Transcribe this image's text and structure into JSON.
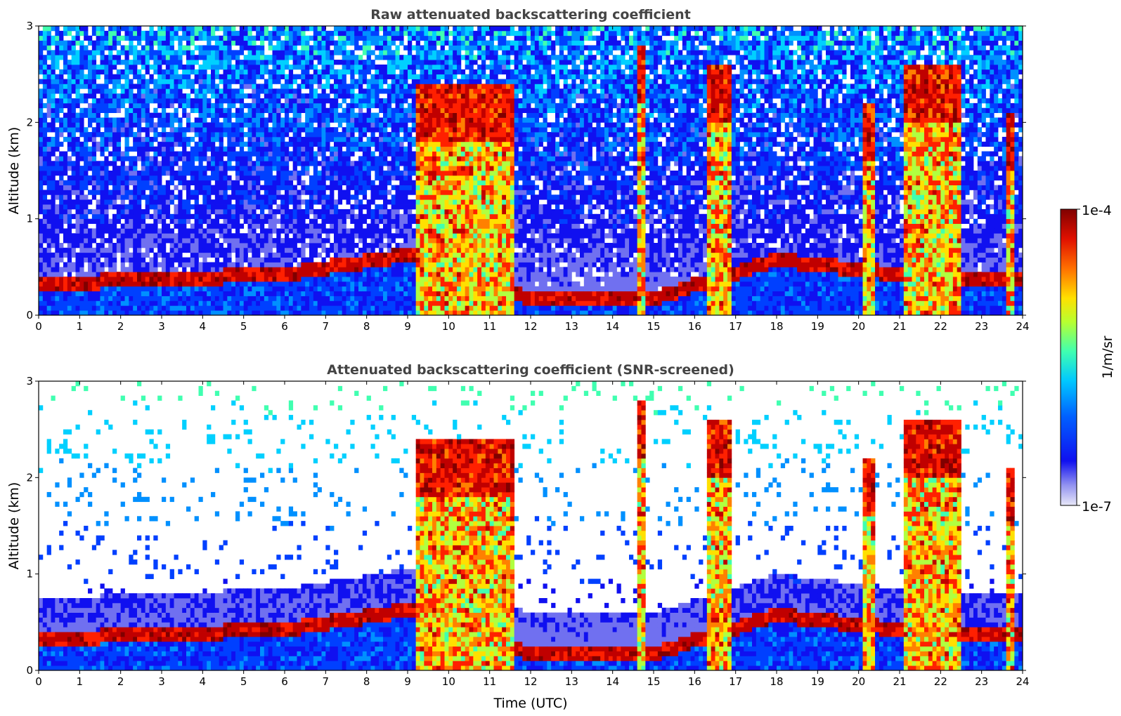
{
  "chart_data": [
    {
      "type": "heatmap",
      "title": "Raw attenuated backscattering coefficient",
      "xlabel": "",
      "ylabel": "Altitude (km)",
      "xlim": [
        0,
        24
      ],
      "ylim": [
        0,
        3
      ],
      "xticks": [
        "0",
        "1",
        "2",
        "3",
        "4",
        "5",
        "6",
        "7",
        "8",
        "9",
        "10",
        "11",
        "12",
        "13",
        "14",
        "15",
        "16",
        "17",
        "18",
        "19",
        "20",
        "21",
        "22",
        "23",
        "24"
      ],
      "yticks": [
        "0",
        "1",
        "2",
        "3"
      ],
      "screened": false
    },
    {
      "type": "heatmap",
      "title": "Attenuated backscattering coefficient (SNR-screened)",
      "xlabel": "Time (UTC)",
      "ylabel": "Altitude (km)",
      "xlim": [
        0,
        24
      ],
      "ylim": [
        0,
        3
      ],
      "xticks": [
        "0",
        "1",
        "2",
        "3",
        "4",
        "5",
        "6",
        "7",
        "8",
        "9",
        "10",
        "11",
        "12",
        "13",
        "14",
        "15",
        "16",
        "17",
        "18",
        "19",
        "20",
        "21",
        "22",
        "23",
        "24"
      ],
      "yticks": [
        "0",
        "1",
        "2",
        "3"
      ],
      "screened": true
    }
  ],
  "colorbar": {
    "label": "1/m/sr",
    "max_label": "1e-4",
    "min_label": "1e-7",
    "colors": [
      "#e8e8f8",
      "#b8b8f0",
      "#7070f0",
      "#1010f0",
      "#0040ff",
      "#0090ff",
      "#00d0ff",
      "#40ffb0",
      "#b0ff40",
      "#ffe000",
      "#ff8000",
      "#ff2000",
      "#c00000",
      "#800000"
    ]
  },
  "features": {
    "boundary_layer_top_km": [
      [
        0,
        0.25
      ],
      [
        3,
        0.3
      ],
      [
        6,
        0.35
      ],
      [
        9,
        0.55
      ],
      [
        12,
        0.1
      ],
      [
        15,
        0.1
      ],
      [
        18,
        0.5
      ],
      [
        21,
        0.35
      ],
      [
        24,
        0.3
      ]
    ],
    "cloud_columns": [
      {
        "x0": 9.2,
        "x1": 11.6,
        "top_km": 2.4
      },
      {
        "x0": 14.6,
        "x1": 14.8,
        "top_km": 2.8
      },
      {
        "x0": 16.3,
        "x1": 16.9,
        "top_km": 2.6
      },
      {
        "x0": 20.1,
        "x1": 20.4,
        "top_km": 2.2
      },
      {
        "x0": 21.1,
        "x1": 22.5,
        "top_km": 2.6
      },
      {
        "x0": 23.65,
        "x1": 23.75,
        "top_km": 2.1
      }
    ]
  }
}
